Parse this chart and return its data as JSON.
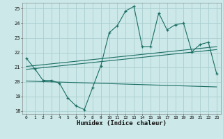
{
  "xlabel": "Humidex (Indice chaleur)",
  "xlim": [
    -0.5,
    23.5
  ],
  "ylim": [
    17.8,
    25.4
  ],
  "yticks": [
    18,
    19,
    20,
    21,
    22,
    23,
    24,
    25
  ],
  "xticks": [
    0,
    1,
    2,
    3,
    4,
    5,
    6,
    7,
    8,
    9,
    10,
    11,
    12,
    13,
    14,
    15,
    16,
    17,
    18,
    19,
    20,
    21,
    22,
    23
  ],
  "bg_color": "#cce8e8",
  "grid_color": "#aacece",
  "line_color": "#1a6e64",
  "main_line": {
    "x": [
      0,
      1,
      2,
      3,
      4,
      5,
      6,
      7,
      8,
      9,
      10,
      11,
      12,
      13,
      14,
      15,
      16,
      17,
      18,
      19,
      20,
      21,
      22,
      23
    ],
    "y": [
      21.6,
      20.9,
      20.1,
      20.1,
      19.9,
      18.9,
      18.35,
      18.1,
      19.6,
      21.1,
      23.35,
      23.85,
      24.85,
      25.15,
      22.4,
      22.4,
      24.7,
      23.55,
      23.9,
      24.0,
      22.05,
      22.55,
      22.7,
      20.55
    ]
  },
  "trend_line1": {
    "x": [
      0,
      23
    ],
    "y": [
      20.85,
      22.2
    ]
  },
  "trend_line2": {
    "x": [
      0,
      23
    ],
    "y": [
      21.05,
      22.4
    ]
  },
  "flat_line": {
    "x": [
      0,
      23
    ],
    "y": [
      20.05,
      19.65
    ]
  }
}
